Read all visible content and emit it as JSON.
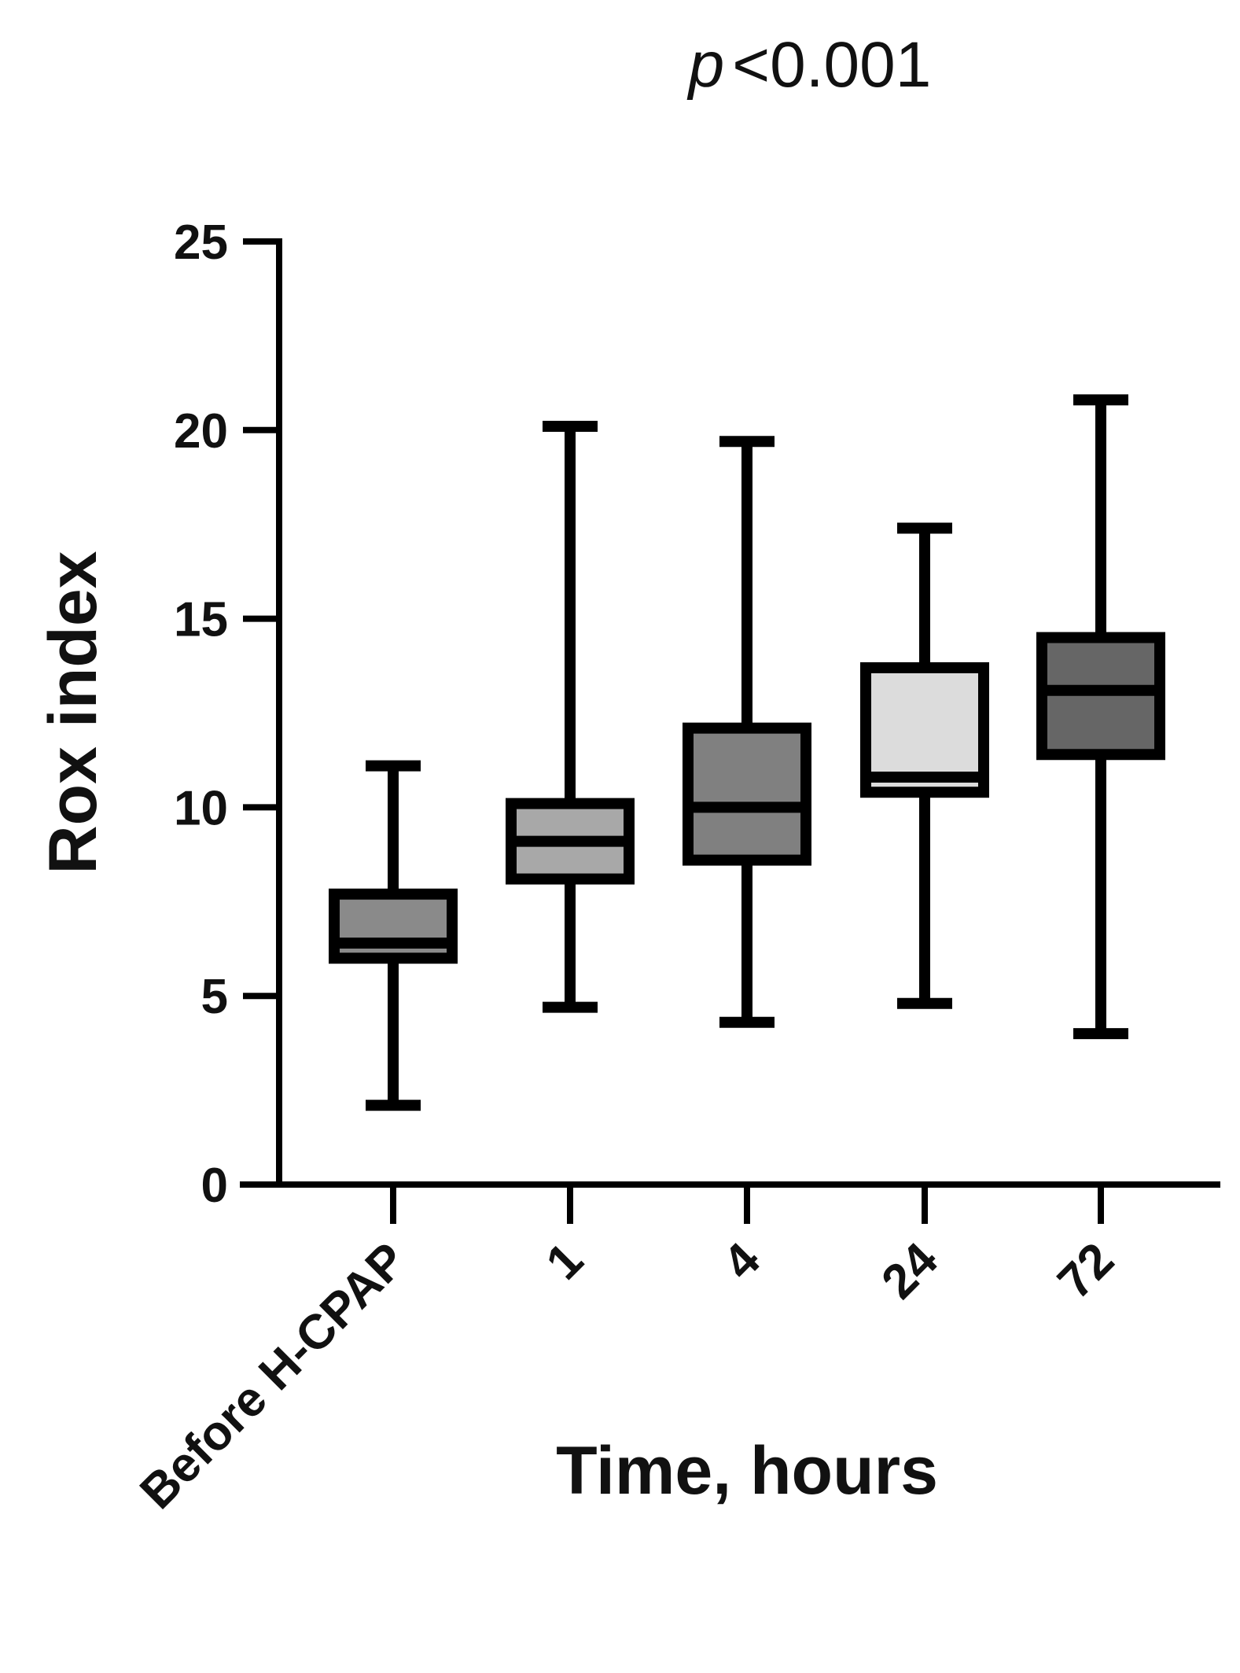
{
  "annotation": {
    "p_symbol": "p",
    "text": "<0.001"
  },
  "chart_data": {
    "type": "box",
    "title": "",
    "xlabel": "Time, hours",
    "ylabel": "Rox index",
    "ylim": [
      0,
      25
    ],
    "yticks": [
      0,
      5,
      10,
      15,
      20,
      25
    ],
    "grid": false,
    "categories": [
      "Before H-CPAP",
      "1",
      "4",
      "24",
      "72"
    ],
    "boxes": [
      {
        "category": "Before H-CPAP",
        "min": 2.1,
        "q1": 6.0,
        "median": 6.4,
        "q3": 7.7,
        "max": 11.1,
        "fill": "#8a8a8a"
      },
      {
        "category": "1",
        "min": 4.7,
        "q1": 8.1,
        "median": 9.1,
        "q3": 10.1,
        "max": 20.1,
        "fill": "#a8a8a8"
      },
      {
        "category": "4",
        "min": 4.3,
        "q1": 8.6,
        "median": 10.0,
        "q3": 12.1,
        "max": 19.7,
        "fill": "#808080"
      },
      {
        "category": "24",
        "min": 4.8,
        "q1": 10.4,
        "median": 10.8,
        "q3": 13.7,
        "max": 17.4,
        "fill": "#dcdcdc"
      },
      {
        "category": "72",
        "min": 4.0,
        "q1": 11.4,
        "median": 13.1,
        "q3": 14.5,
        "max": 20.8,
        "fill": "#666666"
      }
    ]
  }
}
